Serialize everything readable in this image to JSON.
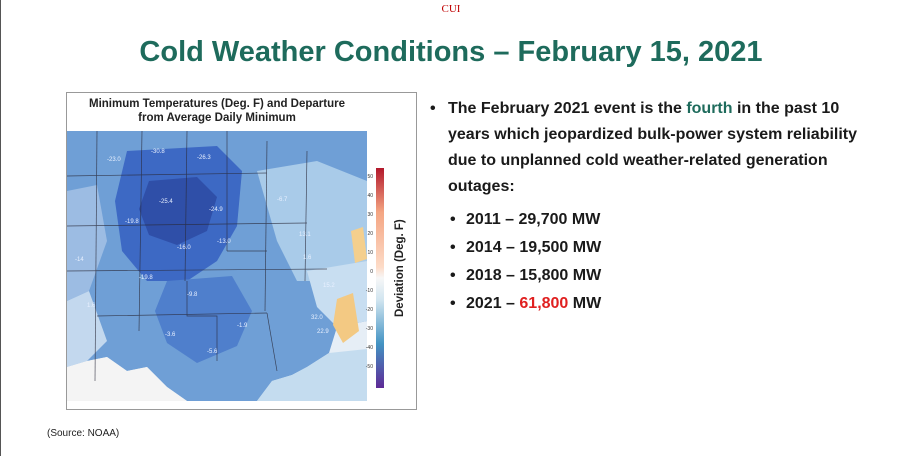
{
  "header": {
    "classification": "CUI"
  },
  "slide": {
    "title": "Cold Weather Conditions – February 15, 2021"
  },
  "map": {
    "title_line1": "Minimum Temperatures (Deg. F) and Departure",
    "title_line2": "from Average Daily Minimum",
    "colorbar_ticks": [
      "50",
      "40",
      "30",
      "20",
      "10",
      "0",
      "-10",
      "-20",
      "-30",
      "-40",
      "-50"
    ],
    "colorbar_label": "Deviation (Deg. F)",
    "source": "(Source: NOAA)"
  },
  "bullets": {
    "main_pre": "The February 2021 event is the ",
    "main_highlight": "fourth",
    "main_post": " in the past 10 years which jeopardized bulk-power system reliability due to unplanned cold weather-related generation outages:",
    "items": [
      {
        "year": "2011 – ",
        "value": "29,700",
        "unit": " MW"
      },
      {
        "year": "2014 – ",
        "value": "19,500",
        "unit": " MW"
      },
      {
        "year": "2018 – ",
        "value": "15,800",
        "unit": " MW"
      },
      {
        "year": "2021 – ",
        "value": "61,800",
        "unit": " MW",
        "highlight": true
      }
    ]
  },
  "colors": {
    "title": "#1e6b5c",
    "highlight_red": "#e02020",
    "classification": "#c00000"
  }
}
